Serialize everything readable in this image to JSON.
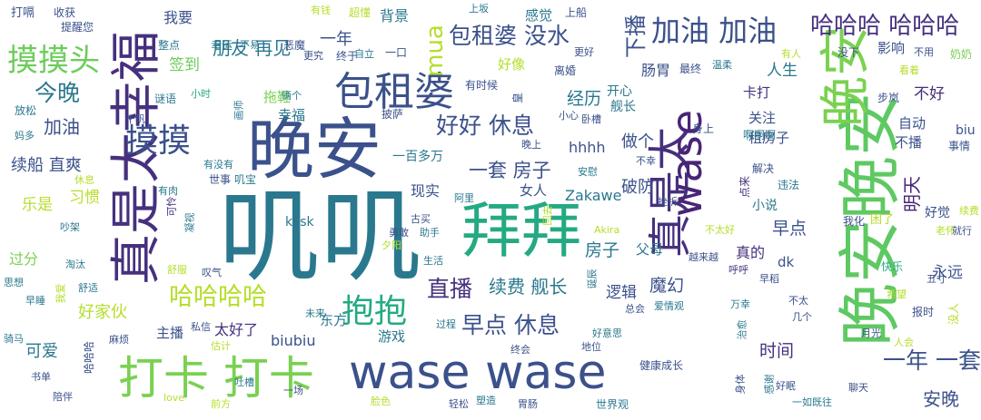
{
  "words": [
    {
      "text": "叽叽",
      "color": "#2a788e"
    },
    {
      "text": "晚安",
      "color": "#3b518b"
    },
    {
      "text": "拜拜",
      "color": "#24aa83"
    },
    {
      "text": "wase wase",
      "color": "#3b518b"
    },
    {
      "text": "打卡 打卡",
      "color": "#7ad151"
    },
    {
      "text": "真是太幸福",
      "color": "#46307e"
    },
    {
      "text": "晚安晚安",
      "color": "#5ec962"
    },
    {
      "text": "真是太",
      "color": "#46307e"
    },
    {
      "text": "wase",
      "color": "#482576"
    },
    {
      "text": "晚安",
      "color": "#7ad151"
    },
    {
      "text": "包租婆",
      "color": "#3b518b"
    },
    {
      "text": "加油 加油",
      "color": "#3b518b"
    },
    {
      "text": "哈哈哈 哈哈哈",
      "color": "#46307e"
    },
    {
      "text": "摸摸头",
      "color": "#6ccd5a"
    },
    {
      "text": "摸摸",
      "color": "#3b518b"
    },
    {
      "text": "包租婆 没水",
      "color": "#3b518b"
    },
    {
      "text": "抱抱",
      "color": "#24aa83"
    },
    {
      "text": "今晚",
      "color": "#2a788e"
    },
    {
      "text": "哈哈哈哈",
      "color": "#b5de2b"
    },
    {
      "text": "好好 休息",
      "color": "#3b518b"
    },
    {
      "text": "早点 休息",
      "color": "#3b518b"
    },
    {
      "text": "直播",
      "color": "#46307e"
    },
    {
      "text": "一年 一套",
      "color": "#3b518b"
    },
    {
      "text": "mua",
      "color": "#b5de2b"
    },
    {
      "text": "加油",
      "color": "#3b518b"
    },
    {
      "text": "续船 直爽",
      "color": "#3b518b"
    },
    {
      "text": "续费 舰长",
      "color": "#2a788e"
    },
    {
      "text": "一套 房子",
      "color": "#3b518b"
    },
    {
      "text": "朋友 再见",
      "color": "#2a788e"
    },
    {
      "text": "下播",
      "color": "#3b518b"
    },
    {
      "text": "经历",
      "color": "#2a788e"
    },
    {
      "text": "房子",
      "color": "#2a788e"
    },
    {
      "text": "安晚",
      "color": "#3b518b"
    },
    {
      "text": "魔幻",
      "color": "#3b518b"
    },
    {
      "text": "时间",
      "color": "#46307e"
    },
    {
      "text": "早点",
      "color": "#3b518b"
    },
    {
      "text": "明天",
      "color": "#482576"
    },
    {
      "text": "签到",
      "color": "#6ccd5a"
    },
    {
      "text": "一年",
      "color": "#3b518b"
    },
    {
      "text": "我要",
      "color": "#3b518b"
    },
    {
      "text": "背景",
      "color": "#2a788e"
    },
    {
      "text": "感觉",
      "color": "#2a788e"
    },
    {
      "text": "不好",
      "color": "#46307e"
    },
    {
      "text": "人生",
      "color": "#2a788e"
    },
    {
      "text": "肠胃",
      "color": "#3b518b"
    },
    {
      "text": "做个",
      "color": "#3b518b"
    },
    {
      "text": "破防",
      "color": "#3b518b"
    },
    {
      "text": "好家伙",
      "color": "#b5de2b"
    },
    {
      "text": "可爱",
      "color": "#2a788e"
    },
    {
      "text": "太好了",
      "color": "#46307e"
    },
    {
      "text": "biubiu",
      "color": "#3b518b"
    },
    {
      "text": "现实",
      "color": "#3b518b"
    },
    {
      "text": "女人",
      "color": "#3b518b"
    },
    {
      "text": "Zakawe",
      "color": "#2a788e"
    },
    {
      "text": "hhhh",
      "color": "#3b518b"
    },
    {
      "text": "逻辑",
      "color": "#3b518b"
    },
    {
      "text": "永远",
      "color": "#3b518b"
    },
    {
      "text": "真的",
      "color": "#46307e"
    },
    {
      "text": "父母",
      "color": "#2a788e"
    },
    {
      "text": "东方",
      "color": "#2a788e"
    },
    {
      "text": "游戏",
      "color": "#2a788e"
    },
    {
      "text": "主播",
      "color": "#3b518b"
    },
    {
      "text": "乐是",
      "color": "#b5de2b"
    },
    {
      "text": "习惯",
      "color": "#b5de2b"
    },
    {
      "text": "过分",
      "color": "#7ad151"
    },
    {
      "text": "拖鞋",
      "color": "#7ad151"
    },
    {
      "text": "幸福",
      "color": "#2a788e"
    },
    {
      "text": "关注",
      "color": "#3b518b"
    },
    {
      "text": "卡打",
      "color": "#46307e"
    },
    {
      "text": "好像",
      "color": "#b5de2b"
    },
    {
      "text": "开心",
      "color": "#2a788e"
    },
    {
      "text": "舰长",
      "color": "#2a788e"
    },
    {
      "text": "租房子",
      "color": "#3b518b"
    },
    {
      "text": "自动",
      "color": "#3b518b"
    },
    {
      "text": "不播",
      "color": "#3b518b"
    },
    {
      "text": "biu",
      "color": "#3b518b"
    },
    {
      "text": "影响",
      "color": "#3b518b"
    },
    {
      "text": "好觉",
      "color": "#3b518b"
    },
    {
      "text": "小说",
      "color": "#2a788e"
    },
    {
      "text": "dk",
      "color": "#3b518b"
    },
    {
      "text": "kksk",
      "color": "#2a788e"
    },
    {
      "text": "一百多万",
      "color": "#2a788e"
    },
    {
      "text": "打嗝",
      "color": "#3b518b"
    },
    {
      "text": "收获",
      "color": "#3b518b"
    },
    {
      "text": "提醒您",
      "color": "#3b518b"
    },
    {
      "text": "超懂",
      "color": "#b5de2b"
    },
    {
      "text": "有钱",
      "color": "#b5de2b"
    },
    {
      "text": "上坂",
      "color": "#2a788e"
    },
    {
      "text": "上船",
      "color": "#3b518b"
    },
    {
      "text": "更好",
      "color": "#3b518b"
    },
    {
      "text": "离婚",
      "color": "#3b518b"
    },
    {
      "text": "最终",
      "color": "#3b518b"
    },
    {
      "text": "温柔",
      "color": "#2a788e"
    },
    {
      "text": "有人",
      "color": "#b5de2b"
    },
    {
      "text": "没下",
      "color": "#3b518b"
    },
    {
      "text": "不用",
      "color": "#3b518b"
    },
    {
      "text": "奶奶",
      "color": "#7ad151"
    },
    {
      "text": "看着",
      "color": "#b5de2b"
    },
    {
      "text": "整点",
      "color": "#2a788e"
    },
    {
      "text": "幸运",
      "color": "#2a788e"
    },
    {
      "text": "不易",
      "color": "#2a788e"
    },
    {
      "text": "恶魔",
      "color": "#3b518b"
    },
    {
      "text": "终于",
      "color": "#3b518b"
    },
    {
      "text": "更究",
      "color": "#3b518b"
    },
    {
      "text": "自立",
      "color": "#2a788e"
    },
    {
      "text": "一口",
      "color": "#3b518b"
    },
    {
      "text": "谜语",
      "color": "#2a788e"
    },
    {
      "text": "小时",
      "color": "#24aa83"
    },
    {
      "text": "俩个",
      "color": "#2a788e"
    },
    {
      "text": "有时候",
      "color": "#3b518b"
    },
    {
      "text": "皇",
      "color": "#3b518b"
    },
    {
      "text": "放松",
      "color": "#2a788e"
    },
    {
      "text": "千帆",
      "color": "#3b518b"
    },
    {
      "text": "画师",
      "color": "#2a788e"
    },
    {
      "text": "披萨",
      "color": "#3b518b"
    },
    {
      "text": "小心",
      "color": "#3b518b"
    },
    {
      "text": "卧槽",
      "color": "#3b518b"
    },
    {
      "text": "身上",
      "color": "#3b518b"
    },
    {
      "text": "啊啊啊",
      "color": "#2a788e"
    },
    {
      "text": "步岚",
      "color": "#3b518b"
    },
    {
      "text": "事情",
      "color": "#3b518b"
    },
    {
      "text": "妈多",
      "color": "#2a788e"
    },
    {
      "text": "晚上",
      "color": "#3b518b"
    },
    {
      "text": "有没有",
      "color": "#2a788e"
    },
    {
      "text": "世事",
      "color": "#3b518b"
    },
    {
      "text": "叽宝",
      "color": "#2a788e"
    },
    {
      "text": "安慰",
      "color": "#2a788e"
    },
    {
      "text": "不幸",
      "color": "#3b518b"
    },
    {
      "text": "解决",
      "color": "#3b518b"
    },
    {
      "text": "违法",
      "color": "#2a788e"
    },
    {
      "text": "点来",
      "color": "#46307e"
    },
    {
      "text": "休息",
      "color": "#b5de2b"
    },
    {
      "text": "有肉",
      "color": "#2a788e"
    },
    {
      "text": "可怜",
      "color": "#46307e"
    },
    {
      "text": "阿里",
      "color": "#2a788e"
    },
    {
      "text": "挫折",
      "color": "#3b518b"
    },
    {
      "text": "我化",
      "color": "#3b518b"
    },
    {
      "text": "困了",
      "color": "#b5de2b"
    },
    {
      "text": "老怀",
      "color": "#b5de2b"
    },
    {
      "text": "就行",
      "color": "#3b518b"
    },
    {
      "text": "续费",
      "color": "#b5de2b"
    },
    {
      "text": "吵架",
      "color": "#2a788e"
    },
    {
      "text": "凝视",
      "color": "#2a788e"
    },
    {
      "text": "古买",
      "color": "#3b518b"
    },
    {
      "text": "勇敢",
      "color": "#3b518b"
    },
    {
      "text": "助手",
      "color": "#2a788e"
    },
    {
      "text": "回去",
      "color": "#b5de2b"
    },
    {
      "text": "Akira",
      "color": "#b5de2b"
    },
    {
      "text": "不太好",
      "color": "#b5de2b"
    },
    {
      "text": "越来越",
      "color": "#3b518b"
    },
    {
      "text": "呼呼",
      "color": "#46307e"
    },
    {
      "text": "淘汰",
      "color": "#2a788e"
    },
    {
      "text": "舒服",
      "color": "#b5de2b"
    },
    {
      "text": "叹气",
      "color": "#3b518b"
    },
    {
      "text": "夕阳",
      "color": "#b5de2b"
    },
    {
      "text": "生活",
      "color": "#2a788e"
    },
    {
      "text": "快乐",
      "color": "#24aa83"
    },
    {
      "text": "五寸",
      "color": "#3b518b"
    },
    {
      "text": "思想",
      "color": "#2a788e"
    },
    {
      "text": "舒适",
      "color": "#2a788e"
    },
    {
      "text": "早稻",
      "color": "#3b518b"
    },
    {
      "text": "希望",
      "color": "#b5de2b"
    },
    {
      "text": "早睡",
      "color": "#2a788e"
    },
    {
      "text": "我爱",
      "color": "#b5de2b"
    },
    {
      "text": "未来",
      "color": "#2a788e"
    },
    {
      "text": "总会",
      "color": "#3b518b"
    },
    {
      "text": "爱情观",
      "color": "#2a788e"
    },
    {
      "text": "万幸",
      "color": "#2a788e"
    },
    {
      "text": "不太",
      "color": "#3b518b"
    },
    {
      "text": "几个",
      "color": "#3b518b"
    },
    {
      "text": "报时",
      "color": "#3b518b"
    },
    {
      "text": "没人",
      "color": "#b5de2b"
    },
    {
      "text": "私信",
      "color": "#3b518b"
    },
    {
      "text": "过程",
      "color": "#2a788e"
    },
    {
      "text": "骑马",
      "color": "#2a788e"
    },
    {
      "text": "麻烦",
      "color": "#3b518b"
    },
    {
      "text": "估计",
      "color": "#b5de2b"
    },
    {
      "text": "好意思",
      "color": "#2a788e"
    },
    {
      "text": "终会",
      "color": "#3b518b"
    },
    {
      "text": "地位",
      "color": "#3b518b"
    },
    {
      "text": "人会",
      "color": "#b5de2b"
    },
    {
      "text": "月光",
      "color": "#3b518b"
    },
    {
      "text": "书单",
      "color": "#3b518b"
    },
    {
      "text": "哈哈哈",
      "color": "#3b518b"
    },
    {
      "text": "健康成长",
      "color": "#3b518b"
    },
    {
      "text": "好眠",
      "color": "#3b518b"
    },
    {
      "text": "陪伴",
      "color": "#3b518b"
    },
    {
      "text": "love",
      "color": "#b5de2b"
    },
    {
      "text": "一场",
      "color": "#3b518b"
    },
    {
      "text": "吐槽",
      "color": "#2a788e"
    },
    {
      "text": "前方",
      "color": "#b5de2b"
    },
    {
      "text": "脸色",
      "color": "#b5de2b"
    },
    {
      "text": "轻松",
      "color": "#3b518b"
    },
    {
      "text": "塑造",
      "color": "#2a788e"
    },
    {
      "text": "胃肠",
      "color": "#3b518b"
    },
    {
      "text": "身体",
      "color": "#3b518b"
    },
    {
      "text": "一如既往",
      "color": "#2a788e"
    },
    {
      "text": "聊天",
      "color": "#3b518b"
    },
    {
      "text": "世界观",
      "color": "#2a788e"
    },
    {
      "text": "感谢",
      "color": "#2a788e"
    },
    {
      "text": "治愈",
      "color": "#2a788e"
    },
    {
      "text": "诞辰",
      "color": "#2a788e"
    }
  ]
}
